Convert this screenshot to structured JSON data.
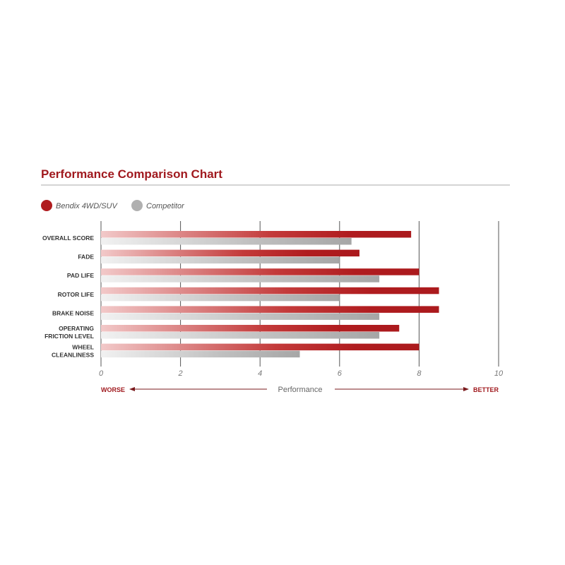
{
  "chart_data": {
    "type": "bar",
    "orientation": "horizontal",
    "title": "Performance Comparison Chart",
    "xlabel": "Performance",
    "xlabel_left": "WORSE",
    "xlabel_right": "BETTER",
    "xlim": [
      0,
      10
    ],
    "xticks": [
      "0",
      "2",
      "4",
      "6",
      "8",
      "10"
    ],
    "grid": true,
    "legend_position": "top-left",
    "categories": [
      [
        "OVERALL SCORE"
      ],
      [
        "FADE"
      ],
      [
        "PAD LIFE"
      ],
      [
        "ROTOR LIFE"
      ],
      [
        "BRAKE NOISE"
      ],
      [
        "OPERATING",
        "FRICTION LEVEL"
      ],
      [
        "WHEEL",
        "CLEANLINESS"
      ]
    ],
    "series": [
      {
        "name": "Bendix 4WD/SUV",
        "color": "#b01c1f",
        "values": [
          7.8,
          6.5,
          8.0,
          8.5,
          8.5,
          7.5,
          8.0
        ]
      },
      {
        "name": "Competitor",
        "color": "#a8a8a8",
        "values": [
          6.3,
          6.0,
          7.0,
          6.0,
          7.0,
          7.0,
          5.0
        ]
      }
    ]
  }
}
